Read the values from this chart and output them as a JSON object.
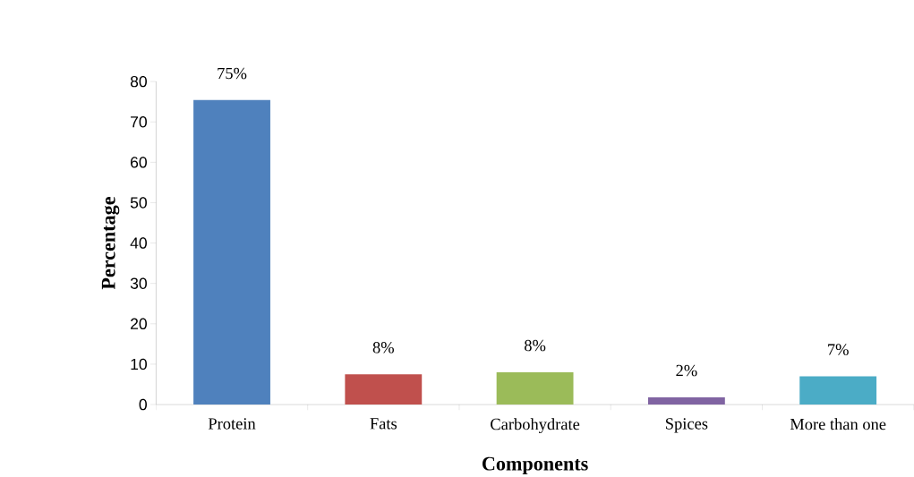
{
  "chart_data": {
    "type": "bar",
    "xlabel": "Components",
    "ylabel": "Percentage",
    "categories": [
      "Protein",
      "Fats",
      "Carbohydrate",
      "Spices",
      "More than one"
    ],
    "values": [
      75.4,
      7.5,
      8,
      1.8,
      7
    ],
    "colors": [
      "#4f81bd",
      "#c0504d",
      "#9bbb59",
      "#8064a2",
      "#4bacc6"
    ],
    "value_labels": [
      "75%",
      "8%",
      "8%",
      "2%",
      "7%"
    ],
    "ylim": [
      0,
      80
    ],
    "yticks": [
      0,
      10,
      20,
      30,
      40,
      50,
      60,
      70,
      80
    ]
  }
}
